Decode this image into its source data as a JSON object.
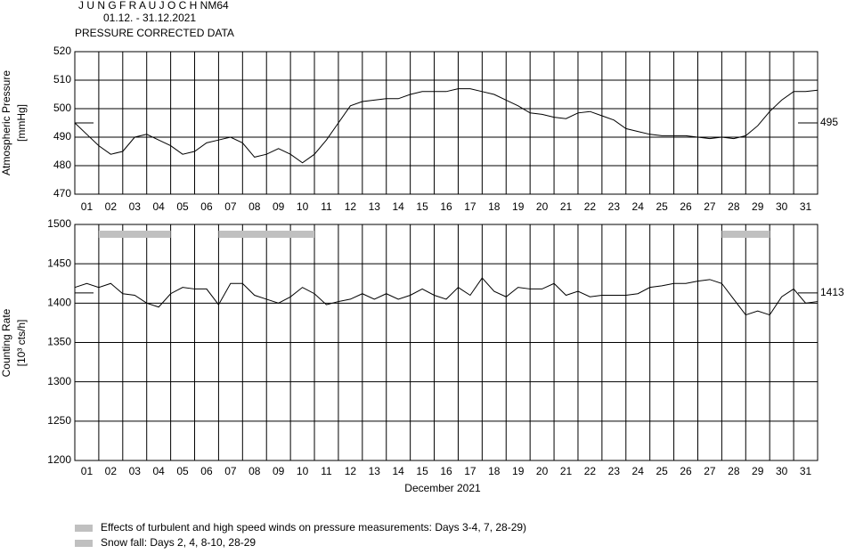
{
  "header": {
    "station": "J U N G F R A U J O C H  NM64",
    "period": "01.12. - 31.12.2021",
    "subtitle": "PRESSURE CORRECTED DATA"
  },
  "chart_data": [
    {
      "type": "line",
      "ylabel": [
        "Atmospheric Pressure",
        "[mmHg]"
      ],
      "xlim": [
        0.5,
        31.5
      ],
      "xticks": [
        {
          "value": 1,
          "label": "01"
        },
        {
          "value": 2,
          "label": "02"
        },
        {
          "value": 3,
          "label": "03"
        },
        {
          "value": 4,
          "label": "04"
        },
        {
          "value": 5,
          "label": "05"
        },
        {
          "value": 6,
          "label": "06"
        },
        {
          "value": 7,
          "label": "07"
        },
        {
          "value": 8,
          "label": "08"
        },
        {
          "value": 9,
          "label": "09"
        },
        10,
        11,
        12,
        13,
        14,
        15,
        16,
        17,
        18,
        19,
        20,
        21,
        22,
        23,
        24,
        25,
        26,
        27,
        28,
        29,
        30,
        31
      ],
      "ylim": [
        470,
        520
      ],
      "yticks": [
        470,
        480,
        490,
        500,
        510,
        520
      ],
      "grid": true,
      "reference": 495,
      "series": [
        {
          "color": "#000000",
          "x": [
            0.5,
            1,
            1.5,
            2,
            2.5,
            3,
            3.5,
            4,
            4.5,
            5,
            5.5,
            6,
            6.5,
            7,
            7.5,
            8,
            8.5,
            9,
            9.5,
            10,
            10.5,
            11,
            11.5,
            12,
            12.5,
            13,
            13.5,
            14,
            14.5,
            15,
            15.5,
            16,
            16.5,
            17,
            17.5,
            18,
            18.5,
            19,
            19.5,
            20,
            20.5,
            21,
            21.5,
            22,
            22.5,
            23,
            23.5,
            24,
            24.5,
            25,
            25.5,
            26,
            26.5,
            27,
            27.5,
            28,
            28.5,
            29,
            29.5,
            30,
            30.5,
            31,
            31.5
          ],
          "values": [
            495,
            491,
            487,
            484,
            485,
            490,
            491,
            489,
            487,
            484,
            485,
            488,
            489,
            490,
            488,
            483,
            484,
            486,
            484,
            481,
            484,
            489,
            495,
            501,
            502.5,
            503,
            503.5,
            503.5,
            505,
            506,
            506,
            506,
            507,
            507,
            506,
            505,
            503,
            501,
            498.5,
            498,
            497,
            496.5,
            498.5,
            499,
            497.5,
            496,
            493,
            492,
            491,
            490.5,
            490.5,
            490.5,
            490,
            489.5,
            490,
            489.5,
            490.5,
            494,
            499,
            503,
            506,
            506,
            506.5
          ]
        }
      ]
    },
    {
      "type": "line",
      "ylabel": [
        "Counting Rate",
        "[10³ cts/h]"
      ],
      "xlabel": "December 2021",
      "xlim": [
        0.5,
        31.5
      ],
      "xticks": [
        {
          "value": 1,
          "label": "01"
        },
        {
          "value": 2,
          "label": "02"
        },
        {
          "value": 3,
          "label": "03"
        },
        {
          "value": 4,
          "label": "04"
        },
        {
          "value": 5,
          "label": "05"
        },
        {
          "value": 6,
          "label": "06"
        },
        {
          "value": 7,
          "label": "07"
        },
        {
          "value": 8,
          "label": "08"
        },
        {
          "value": 9,
          "label": "09"
        },
        10,
        11,
        12,
        13,
        14,
        15,
        16,
        17,
        18,
        19,
        20,
        21,
        22,
        23,
        24,
        25,
        26,
        27,
        28,
        29,
        30,
        31
      ],
      "ylim": [
        1200,
        1500
      ],
      "yticks": [
        1200,
        1250,
        1300,
        1350,
        1400,
        1450,
        1500
      ],
      "grid": true,
      "reference": 1413,
      "bands": [
        {
          "start": 1.5,
          "end": 4.5,
          "color": "#c0c0c0"
        },
        {
          "start": 6.5,
          "end": 10.5,
          "color": "#c0c0c0"
        },
        {
          "start": 27.5,
          "end": 29.5,
          "color": "#c0c0c0"
        }
      ],
      "series": [
        {
          "color": "#000000",
          "x": [
            0.5,
            1,
            1.5,
            2,
            2.5,
            3,
            3.5,
            4,
            4.5,
            5,
            5.5,
            6,
            6.5,
            7,
            7.5,
            8,
            8.5,
            9,
            9.5,
            10,
            10.5,
            11,
            11.5,
            12,
            12.5,
            13,
            13.5,
            14,
            14.5,
            15,
            15.5,
            16,
            16.5,
            17,
            17.5,
            18,
            18.5,
            19,
            19.5,
            20,
            20.5,
            21,
            21.5,
            22,
            22.5,
            23,
            23.5,
            24,
            24.5,
            25,
            25.5,
            26,
            26.5,
            27,
            27.5,
            28,
            28.5,
            29,
            29.5,
            30,
            30.5,
            31,
            31.5
          ],
          "values": [
            1420,
            1425,
            1420,
            1425,
            1412,
            1410,
            1400,
            1395,
            1412,
            1420,
            1418,
            1418,
            1398,
            1425,
            1425,
            1410,
            1405,
            1400,
            1408,
            1420,
            1412,
            1398,
            1402,
            1405,
            1412,
            1405,
            1412,
            1405,
            1410,
            1418,
            1410,
            1405,
            1420,
            1410,
            1432,
            1415,
            1408,
            1420,
            1418,
            1418,
            1425,
            1410,
            1415,
            1408,
            1410,
            1410,
            1410,
            1412,
            1420,
            1422,
            1425,
            1425,
            1428,
            1430,
            1425,
            1405,
            1385,
            1390,
            1385,
            1408,
            1418,
            1400,
            1402
          ]
        }
      ]
    }
  ],
  "legend": [
    {
      "label": "Effects of turbulent and high speed winds on pressure measurements: Days 3-4, 7, 28-29)",
      "color": "#c0c0c0"
    },
    {
      "label": "Snow fall: Days 2, 4, 8-10, 28-29",
      "color": "#c0c0c0"
    }
  ]
}
